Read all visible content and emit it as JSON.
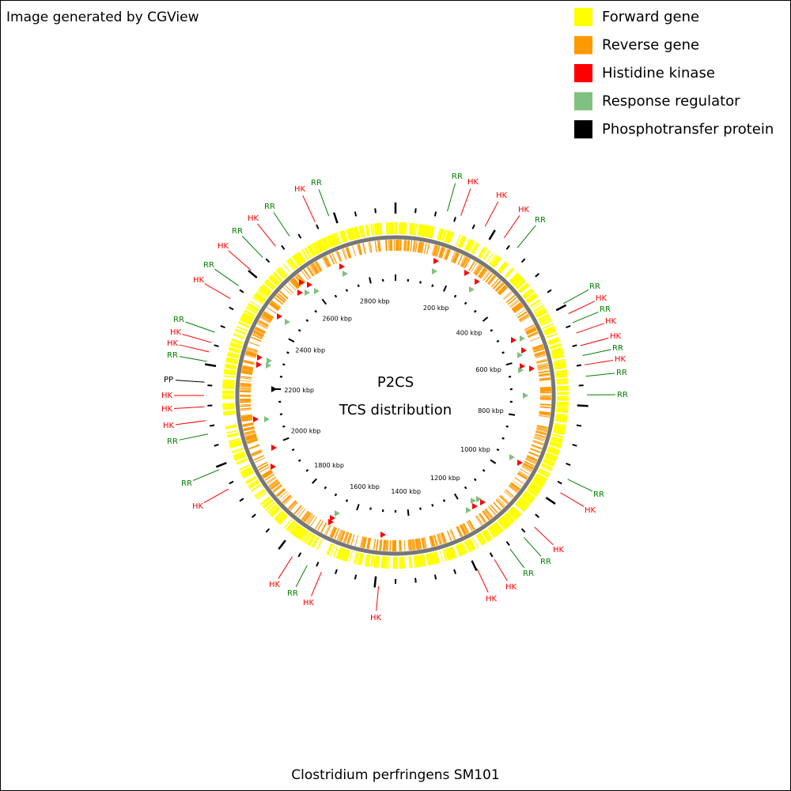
{
  "credit": "Image generated by CGView",
  "legend": [
    {
      "label": "Forward gene",
      "color": "#ffff00"
    },
    {
      "label": "Reverse gene",
      "color": "#ff9900"
    },
    {
      "label": "Histidine kinase",
      "color": "#ff0000"
    },
    {
      "label": "Response regulator",
      "color": "#80c080"
    },
    {
      "label": "Phosphotransfer protein",
      "color": "#000000"
    }
  ],
  "center": {
    "title": "P2CS",
    "subtitle": "TCS distribution"
  },
  "caption": "Clostridium perfringens SM101",
  "scale_labels": [
    "200 kbp",
    "400 kbp",
    "600 kbp",
    "800 kbp",
    "1000 kbp",
    "1200 kbp",
    "1400 kbp",
    "1600 kbp",
    "1800 kbp",
    "2000 kbp",
    "2200 kbp",
    "2400 kbp",
    "2600 kbp",
    "2800 kbp"
  ],
  "features": [
    {
      "label": "RR"
    },
    {
      "label": "HK"
    },
    {
      "label": "HK"
    },
    {
      "label": "HK"
    },
    {
      "label": "RR"
    },
    {
      "label": "RR"
    },
    {
      "label": "HK"
    },
    {
      "label": "RR"
    },
    {
      "label": "HK"
    },
    {
      "label": "HK"
    },
    {
      "label": "RR"
    },
    {
      "label": "HK"
    },
    {
      "label": "RR"
    },
    {
      "label": "RR"
    },
    {
      "label": "RR"
    },
    {
      "label": "HK"
    },
    {
      "label": "HK"
    },
    {
      "label": "RR"
    },
    {
      "label": "RR"
    },
    {
      "label": "HK"
    },
    {
      "label": "HK"
    },
    {
      "label": "HK"
    },
    {
      "label": "HK"
    },
    {
      "label": "RR"
    },
    {
      "label": "HK"
    },
    {
      "label": "HK"
    },
    {
      "label": "RR"
    },
    {
      "label": "RR"
    },
    {
      "label": "HK"
    },
    {
      "label": "HK"
    },
    {
      "label": "HK"
    },
    {
      "label": "PP"
    },
    {
      "label": "RR"
    },
    {
      "label": "HK"
    },
    {
      "label": "HK"
    },
    {
      "label": "RR"
    },
    {
      "label": "HK"
    },
    {
      "label": "RR"
    },
    {
      "label": "HK"
    },
    {
      "label": "RR"
    },
    {
      "label": "HK"
    },
    {
      "label": "RR"
    },
    {
      "label": "HK"
    },
    {
      "label": "RR"
    }
  ]
}
